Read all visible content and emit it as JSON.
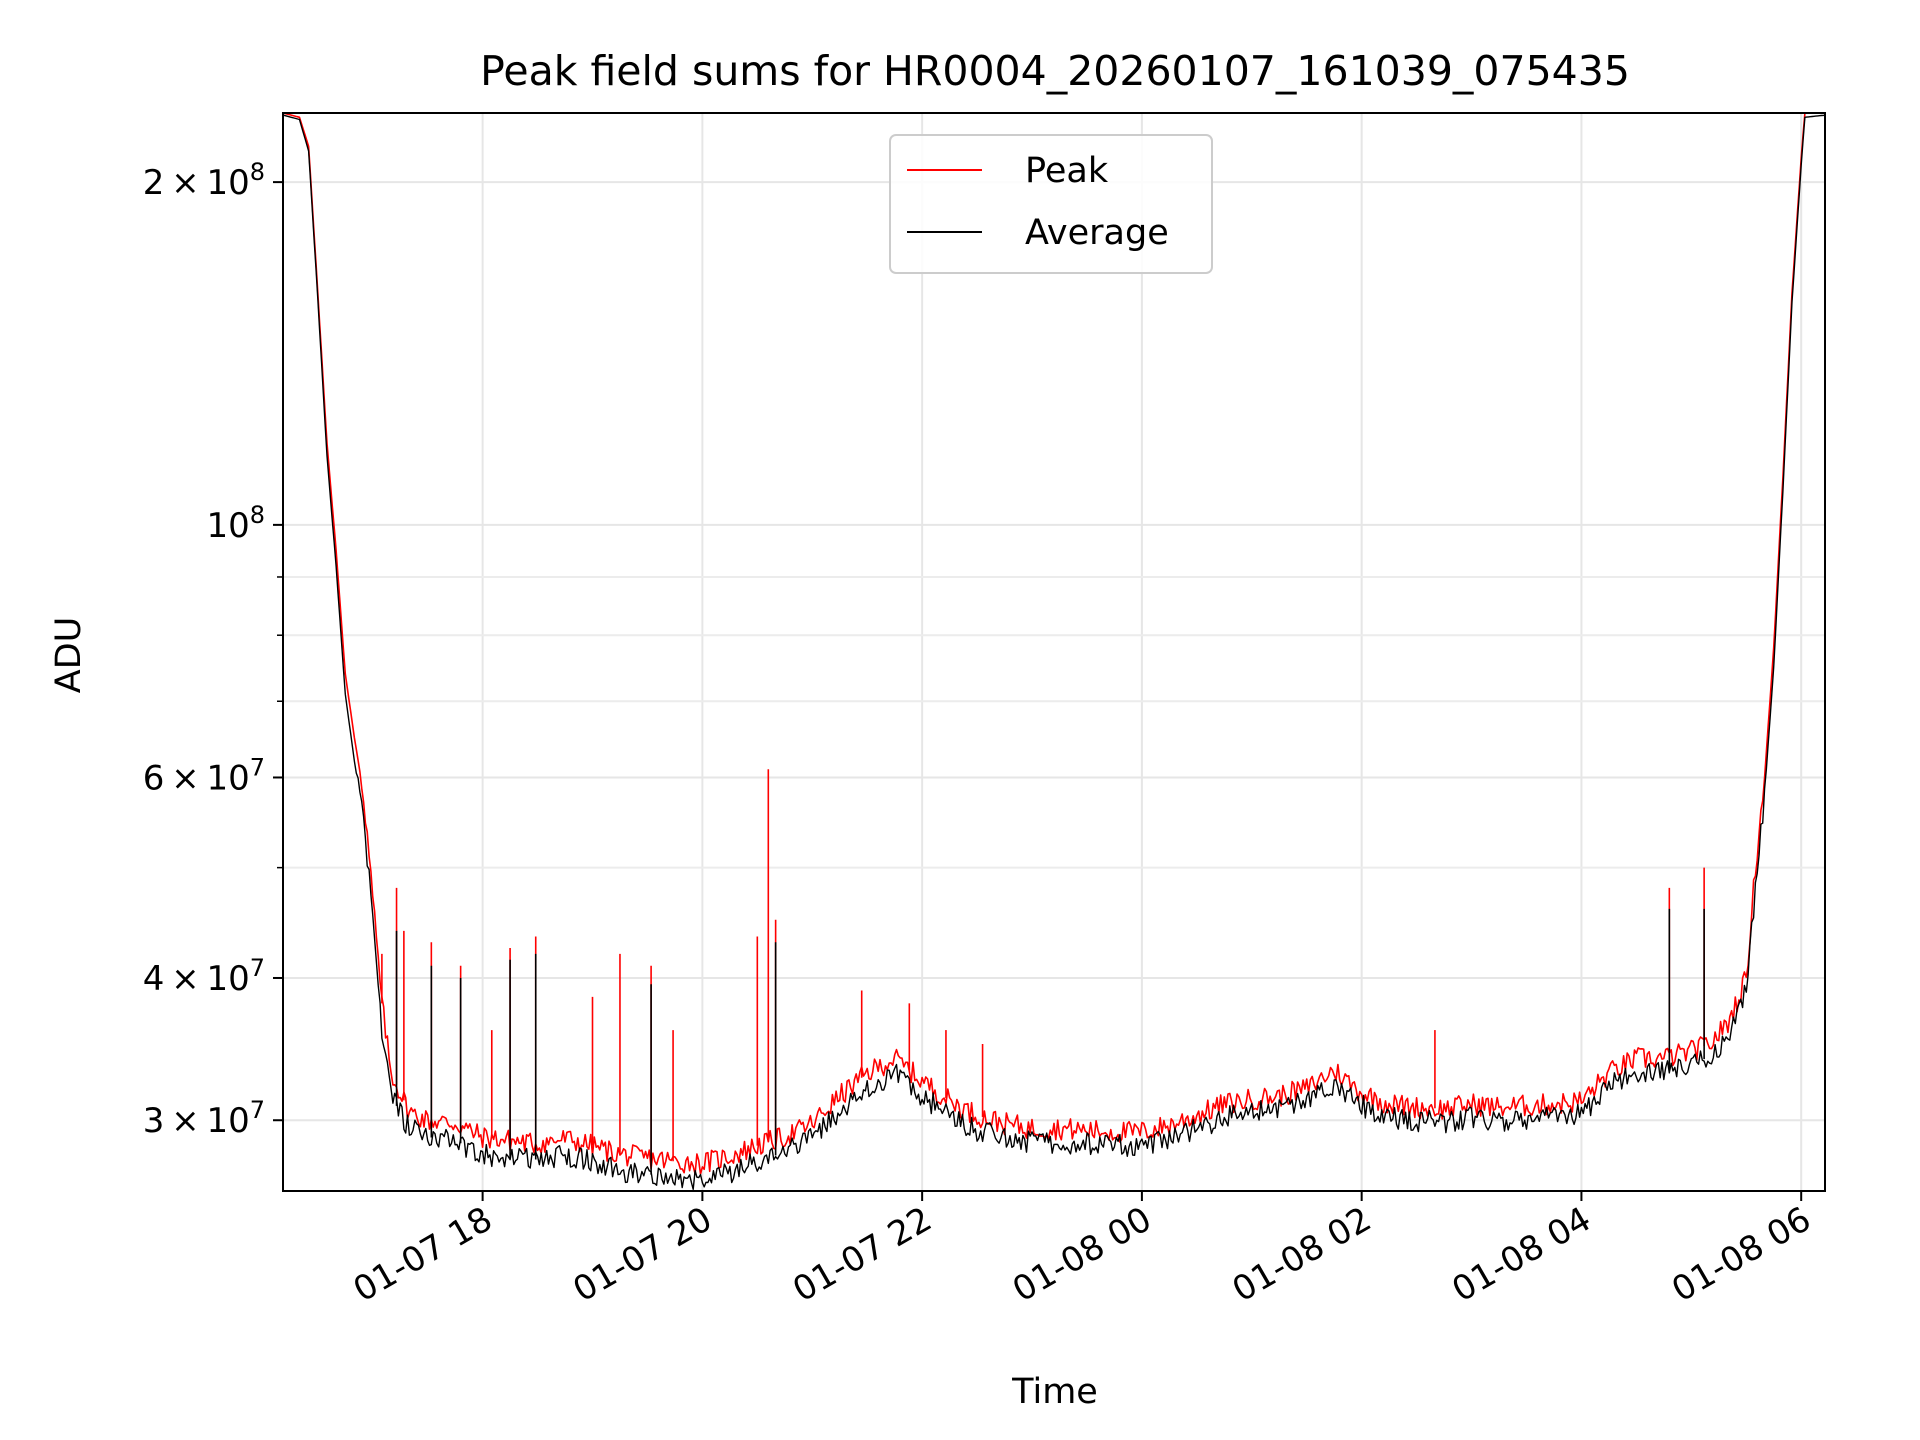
{
  "chart_data": {
    "type": "line",
    "title": "Peak field sums for HR0004_20260107_161039_075435",
    "xlabel": "Time",
    "ylabel": "ADU",
    "x_scale": "time",
    "y_scale": "log",
    "xlim": [
      "2026-01-07 16:11",
      "2026-01-08 06:13"
    ],
    "ylim": [
      26000000,
      230000000
    ],
    "x_ticks": [
      {
        "value": "2026-01-07 18:00",
        "label": "01-07 18"
      },
      {
        "value": "2026-01-07 20:00",
        "label": "01-07 20"
      },
      {
        "value": "2026-01-07 22:00",
        "label": "01-07 22"
      },
      {
        "value": "2026-01-08 00:00",
        "label": "01-08 00"
      },
      {
        "value": "2026-01-08 02:00",
        "label": "01-08 02"
      },
      {
        "value": "2026-01-08 04:00",
        "label": "01-08 04"
      },
      {
        "value": "2026-01-08 06:00",
        "label": "01-08 06"
      }
    ],
    "y_ticks": [
      {
        "value": 30000000,
        "mantissa": "3",
        "exp": "7"
      },
      {
        "value": 40000000,
        "mantissa": "4",
        "exp": "7"
      },
      {
        "value": 60000000,
        "mantissa": "6",
        "exp": "7"
      },
      {
        "value": 100000000,
        "mantissa": "",
        "exp": "8"
      },
      {
        "value": 200000000,
        "mantissa": "2",
        "exp": "8"
      }
    ],
    "y_minor_ticks": [
      50000000,
      70000000,
      80000000,
      90000000
    ],
    "grid": true,
    "legend": {
      "placement": "top-center"
    },
    "series": [
      {
        "name": "Peak",
        "color": "#ff0000",
        "points": [
          [
            "2026-01-07 16:11",
            230000000
          ],
          [
            "2026-01-07 16:20",
            228000000
          ],
          [
            "2026-01-07 16:25",
            215000000
          ],
          [
            "2026-01-07 16:30",
            160000000
          ],
          [
            "2026-01-07 16:35",
            118000000
          ],
          [
            "2026-01-07 16:40",
            95000000
          ],
          [
            "2026-01-07 16:45",
            74000000
          ],
          [
            "2026-01-07 16:50",
            65000000
          ],
          [
            "2026-01-07 16:55",
            58000000
          ],
          [
            "2026-01-07 17:00",
            47000000
          ],
          [
            "2026-01-07 17:05",
            38000000
          ],
          [
            "2026-01-07 17:10",
            33000000
          ],
          [
            "2026-01-07 17:20",
            30500000
          ],
          [
            "2026-01-07 17:30",
            30000000
          ],
          [
            "2026-01-07 17:45",
            29800000
          ],
          [
            "2026-01-07 18:00",
            29000000
          ],
          [
            "2026-01-07 18:15",
            28800000
          ],
          [
            "2026-01-07 18:30",
            28600000
          ],
          [
            "2026-01-07 18:45",
            28900000
          ],
          [
            "2026-01-07 19:00",
            28500000
          ],
          [
            "2026-01-07 19:15",
            28000000
          ],
          [
            "2026-01-07 19:30",
            27800000
          ],
          [
            "2026-01-07 19:45",
            27600000
          ],
          [
            "2026-01-07 20:00",
            27500000
          ],
          [
            "2026-01-07 20:15",
            27900000
          ],
          [
            "2026-01-07 20:30",
            28500000
          ],
          [
            "2026-01-07 20:45",
            29000000
          ],
          [
            "2026-01-07 21:00",
            29800000
          ],
          [
            "2026-01-07 21:15",
            31500000
          ],
          [
            "2026-01-07 21:30",
            33000000
          ],
          [
            "2026-01-07 21:45",
            34000000
          ],
          [
            "2026-01-07 22:00",
            32500000
          ],
          [
            "2026-01-07 22:15",
            31200000
          ],
          [
            "2026-01-07 22:30",
            30300000
          ],
          [
            "2026-01-07 22:45",
            29800000
          ],
          [
            "2026-01-07 23:00",
            29500000
          ],
          [
            "2026-01-07 23:15",
            29500000
          ],
          [
            "2026-01-07 23:30",
            29400000
          ],
          [
            "2026-01-07 23:45",
            29300000
          ],
          [
            "2026-01-08 00:00",
            29300000
          ],
          [
            "2026-01-08 00:15",
            29700000
          ],
          [
            "2026-01-08 00:30",
            30300000
          ],
          [
            "2026-01-08 00:45",
            31000000
          ],
          [
            "2026-01-08 01:00",
            31300000
          ],
          [
            "2026-01-08 01:15",
            31500000
          ],
          [
            "2026-01-08 01:30",
            32000000
          ],
          [
            "2026-01-08 01:45",
            33200000
          ],
          [
            "2026-01-08 02:00",
            31700000
          ],
          [
            "2026-01-08 02:15",
            31000000
          ],
          [
            "2026-01-08 02:30",
            30800000
          ],
          [
            "2026-01-08 02:45",
            30700000
          ],
          [
            "2026-01-08 03:00",
            31000000
          ],
          [
            "2026-01-08 03:15",
            30800000
          ],
          [
            "2026-01-08 03:30",
            30900000
          ],
          [
            "2026-01-08 03:45",
            31000000
          ],
          [
            "2026-01-08 04:00",
            31200000
          ],
          [
            "2026-01-08 04:15",
            33000000
          ],
          [
            "2026-01-08 04:30",
            34000000
          ],
          [
            "2026-01-08 04:45",
            34000000
          ],
          [
            "2026-01-08 05:00",
            34500000
          ],
          [
            "2026-01-08 05:10",
            35000000
          ],
          [
            "2026-01-08 05:20",
            36500000
          ],
          [
            "2026-01-08 05:30",
            40000000
          ],
          [
            "2026-01-08 05:35",
            50000000
          ],
          [
            "2026-01-08 05:40",
            60000000
          ],
          [
            "2026-01-08 05:45",
            78000000
          ],
          [
            "2026-01-08 05:50",
            110000000
          ],
          [
            "2026-01-08 05:55",
            160000000
          ],
          [
            "2026-01-08 06:00",
            210000000
          ],
          [
            "2026-01-08 06:02",
            230000000
          ],
          [
            "2026-01-08 06:13",
            230000000
          ]
        ],
        "spikes": [
          [
            "2026-01-07 17:05",
            42000000
          ],
          [
            "2026-01-07 17:13",
            48000000
          ],
          [
            "2026-01-07 17:17",
            44000000
          ],
          [
            "2026-01-07 17:32",
            43000000
          ],
          [
            "2026-01-07 17:48",
            41000000
          ],
          [
            "2026-01-07 18:05",
            36000000
          ],
          [
            "2026-01-07 18:15",
            42500000
          ],
          [
            "2026-01-07 18:29",
            43500000
          ],
          [
            "2026-01-07 19:00",
            38500000
          ],
          [
            "2026-01-07 19:15",
            42000000
          ],
          [
            "2026-01-07 19:32",
            41000000
          ],
          [
            "2026-01-07 19:44",
            36000000
          ],
          [
            "2026-01-07 20:30",
            43500000
          ],
          [
            "2026-01-07 20:36",
            61000000
          ],
          [
            "2026-01-07 20:40",
            45000000
          ],
          [
            "2026-01-07 21:27",
            39000000
          ],
          [
            "2026-01-07 21:53",
            38000000
          ],
          [
            "2026-01-07 22:13",
            36000000
          ],
          [
            "2026-01-07 22:33",
            35000000
          ],
          [
            "2026-01-08 02:40",
            36000000
          ],
          [
            "2026-01-08 04:48",
            48000000
          ],
          [
            "2026-01-08 05:07",
            50000000
          ]
        ]
      },
      {
        "name": "Average",
        "color": "#000000",
        "points": [
          [
            "2026-01-07 16:11",
            229000000
          ],
          [
            "2026-01-07 16:20",
            227000000
          ],
          [
            "2026-01-07 16:25",
            213000000
          ],
          [
            "2026-01-07 16:30",
            158000000
          ],
          [
            "2026-01-07 16:35",
            115000000
          ],
          [
            "2026-01-07 16:40",
            92000000
          ],
          [
            "2026-01-07 16:45",
            71000000
          ],
          [
            "2026-01-07 16:50",
            62000000
          ],
          [
            "2026-01-07 16:55",
            55000000
          ],
          [
            "2026-01-07 17:00",
            45000000
          ],
          [
            "2026-01-07 17:05",
            36000000
          ],
          [
            "2026-01-07 17:10",
            31500000
          ],
          [
            "2026-01-07 17:20",
            29500000
          ],
          [
            "2026-01-07 17:30",
            29000000
          ],
          [
            "2026-01-07 17:45",
            28800000
          ],
          [
            "2026-01-07 18:00",
            28000000
          ],
          [
            "2026-01-07 18:15",
            27800000
          ],
          [
            "2026-01-07 18:30",
            27700000
          ],
          [
            "2026-01-07 18:45",
            28000000
          ],
          [
            "2026-01-07 19:00",
            27600000
          ],
          [
            "2026-01-07 19:15",
            27100000
          ],
          [
            "2026-01-07 19:30",
            26900000
          ],
          [
            "2026-01-07 19:45",
            26700000
          ],
          [
            "2026-01-07 20:00",
            26600000
          ],
          [
            "2026-01-07 20:15",
            27000000
          ],
          [
            "2026-01-07 20:30",
            27600000
          ],
          [
            "2026-01-07 20:45",
            28100000
          ],
          [
            "2026-01-07 21:00",
            28900000
          ],
          [
            "2026-01-07 21:15",
            30500000
          ],
          [
            "2026-01-07 21:30",
            32000000
          ],
          [
            "2026-01-07 21:45",
            33000000
          ],
          [
            "2026-01-07 22:00",
            31500000
          ],
          [
            "2026-01-07 22:15",
            30300000
          ],
          [
            "2026-01-07 22:30",
            29400000
          ],
          [
            "2026-01-07 22:45",
            29000000
          ],
          [
            "2026-01-07 23:00",
            28700000
          ],
          [
            "2026-01-07 23:15",
            28700000
          ],
          [
            "2026-01-07 23:30",
            28600000
          ],
          [
            "2026-01-07 23:45",
            28500000
          ],
          [
            "2026-01-08 00:00",
            28500000
          ],
          [
            "2026-01-08 00:15",
            28900000
          ],
          [
            "2026-01-08 00:30",
            29500000
          ],
          [
            "2026-01-08 00:45",
            30200000
          ],
          [
            "2026-01-08 01:00",
            30500000
          ],
          [
            "2026-01-08 01:15",
            30700000
          ],
          [
            "2026-01-08 01:30",
            31200000
          ],
          [
            "2026-01-08 01:45",
            32300000
          ],
          [
            "2026-01-08 02:00",
            30900000
          ],
          [
            "2026-01-08 02:15",
            30200000
          ],
          [
            "2026-01-08 02:30",
            30000000
          ],
          [
            "2026-01-08 02:45",
            29900000
          ],
          [
            "2026-01-08 03:00",
            30200000
          ],
          [
            "2026-01-08 03:15",
            30000000
          ],
          [
            "2026-01-08 03:30",
            30100000
          ],
          [
            "2026-01-08 03:45",
            30200000
          ],
          [
            "2026-01-08 04:00",
            30400000
          ],
          [
            "2026-01-08 04:15",
            32200000
          ],
          [
            "2026-01-08 04:30",
            33100000
          ],
          [
            "2026-01-08 04:45",
            33100000
          ],
          [
            "2026-01-08 05:00",
            33600000
          ],
          [
            "2026-01-08 05:10",
            34100000
          ],
          [
            "2026-01-08 05:20",
            35500000
          ],
          [
            "2026-01-08 05:30",
            39000000
          ],
          [
            "2026-01-08 05:35",
            48000000
          ],
          [
            "2026-01-08 05:40",
            58000000
          ],
          [
            "2026-01-08 05:45",
            75000000
          ],
          [
            "2026-01-08 05:50",
            107000000
          ],
          [
            "2026-01-08 05:55",
            157000000
          ],
          [
            "2026-01-08 06:00",
            207000000
          ],
          [
            "2026-01-08 06:02",
            228000000
          ],
          [
            "2026-01-08 06:13",
            229000000
          ]
        ],
        "spikes": [
          [
            "2026-01-07 17:13",
            44000000
          ],
          [
            "2026-01-07 17:32",
            41000000
          ],
          [
            "2026-01-07 17:48",
            40000000
          ],
          [
            "2026-01-07 18:15",
            41500000
          ],
          [
            "2026-01-07 18:29",
            42000000
          ],
          [
            "2026-01-07 19:32",
            39500000
          ],
          [
            "2026-01-07 20:40",
            43000000
          ],
          [
            "2026-01-08 04:48",
            46000000
          ],
          [
            "2026-01-08 05:07",
            46000000
          ]
        ]
      }
    ]
  }
}
